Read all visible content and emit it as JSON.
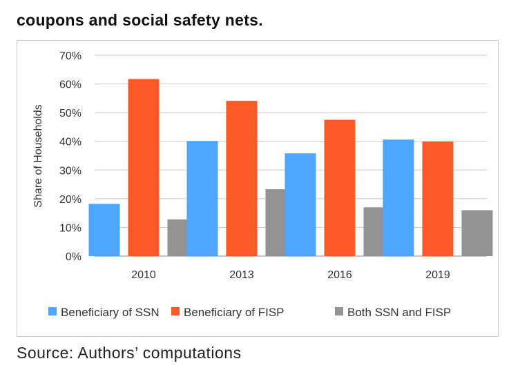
{
  "title": "coupons and social safety nets.",
  "source": "Source: Authors’ computations",
  "chart_data": {
    "type": "bar",
    "categories": [
      "2010",
      "2013",
      "2016",
      "2019"
    ],
    "series": [
      {
        "name": "Beneficiary of SSN",
        "color": "#4da6ff",
        "values": [
          18.2,
          40.1,
          35.8,
          40.6
        ]
      },
      {
        "name": "Beneficiary of FISP",
        "color": "#fa5a28",
        "values": [
          61.7,
          54.1,
          47.5,
          39.9
        ]
      },
      {
        "name": "Both SSN and FISP",
        "color": "#939393",
        "values": [
          12.8,
          23.3,
          17.0,
          16.0
        ]
      }
    ],
    "ylabel": "Share of Households",
    "xlabel": "",
    "ylim": [
      0,
      70
    ],
    "yticks": [
      "0%",
      "10%",
      "20%",
      "30%",
      "40%",
      "50%",
      "60%",
      "70%"
    ],
    "grid": true,
    "legend": "bottom"
  }
}
